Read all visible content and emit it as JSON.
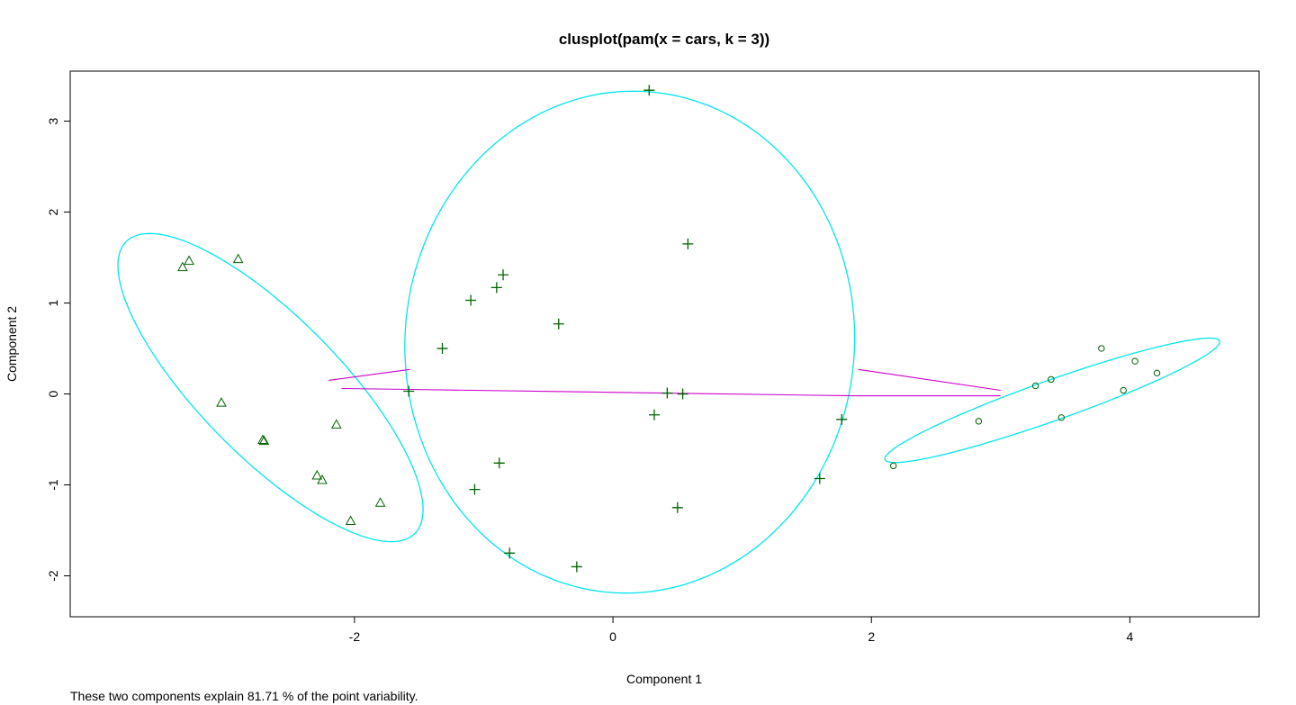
{
  "chart_data": {
    "type": "scatter",
    "title": "clusplot(pam(x = cars, k = 3))",
    "xlabel": "Component 1",
    "ylabel": "Component 2",
    "subtitle": "These two components explain 81.71 % of the point variability.",
    "xlim": [
      -4.2,
      5.0
    ],
    "ylim": [
      -2.45,
      3.55
    ],
    "xticks": [
      -2,
      0,
      2,
      4
    ],
    "yticks": [
      -2,
      -1,
      0,
      1,
      2,
      3
    ],
    "xtick_labels": [
      "-2",
      "0",
      "2",
      "4"
    ],
    "ytick_labels": [
      "-2",
      "-1",
      "0",
      "1",
      "2",
      "3"
    ],
    "grid": false,
    "colors": {
      "ellipse": "#00e5ee",
      "connector": "#cc00cc",
      "points": "#006400",
      "frame": "#000000"
    },
    "clusters": [
      {
        "marker": "triangle",
        "center": [
          -2.65,
          0.07
        ],
        "ellipse": {
          "semi_major": 1.97,
          "semi_minor": 0.62,
          "angle_deg": -57.5
        },
        "points": [
          [
            -3.33,
            1.39
          ],
          [
            -3.28,
            1.46
          ],
          [
            -2.9,
            1.48
          ],
          [
            -3.03,
            -0.1
          ],
          [
            -2.7,
            -0.52
          ],
          [
            -2.71,
            -0.51
          ],
          [
            -2.14,
            -0.34
          ],
          [
            -2.29,
            -0.9
          ],
          [
            -2.25,
            -0.95
          ],
          [
            -2.03,
            -1.4
          ],
          [
            -1.8,
            -1.2
          ]
        ]
      },
      {
        "marker": "plus",
        "center": [
          0.13,
          0.57
        ],
        "ellipse": {
          "semi_major": 2.76,
          "semi_minor": 1.74,
          "angle_deg": 89
        },
        "points": [
          [
            0.28,
            3.34
          ],
          [
            0.58,
            1.65
          ],
          [
            -0.85,
            1.31
          ],
          [
            -0.9,
            1.17
          ],
          [
            -1.1,
            1.03
          ],
          [
            -0.42,
            0.77
          ],
          [
            -1.32,
            0.5
          ],
          [
            -1.58,
            0.03
          ],
          [
            0.42,
            0.01
          ],
          [
            0.54,
            0.0
          ],
          [
            0.32,
            -0.23
          ],
          [
            1.77,
            -0.28
          ],
          [
            -0.88,
            -0.76
          ],
          [
            -1.07,
            -1.05
          ],
          [
            1.6,
            -0.93
          ],
          [
            0.5,
            -1.25
          ],
          [
            -0.8,
            -1.75
          ],
          [
            -0.28,
            -1.9
          ]
        ]
      },
      {
        "marker": "circle",
        "center": [
          3.4,
          -0.07
        ],
        "ellipse": {
          "semi_major": 1.45,
          "semi_minor": 0.21,
          "angle_deg": 27
        },
        "points": [
          [
            2.17,
            -0.79
          ],
          [
            2.83,
            -0.3
          ],
          [
            3.27,
            0.09
          ],
          [
            3.39,
            0.16
          ],
          [
            3.47,
            -0.26
          ],
          [
            3.78,
            0.5
          ],
          [
            3.95,
            0.04
          ],
          [
            4.04,
            0.36
          ],
          [
            4.21,
            0.23
          ]
        ]
      }
    ],
    "connectors": [
      {
        "from": [
          -2.2,
          0.15
        ],
        "to": [
          -1.57,
          0.27
        ]
      },
      {
        "from": [
          -2.1,
          0.06
        ],
        "to": [
          -1.57,
          0.05
        ]
      },
      {
        "from": [
          1.9,
          0.27
        ],
        "to": [
          3.0,
          0.04
        ]
      },
      {
        "from": [
          1.85,
          -0.02
        ],
        "to": [
          3.0,
          -0.02
        ]
      },
      {
        "from": [
          -1.57,
          0.05
        ],
        "to": [
          1.85,
          -0.02
        ]
      }
    ]
  }
}
